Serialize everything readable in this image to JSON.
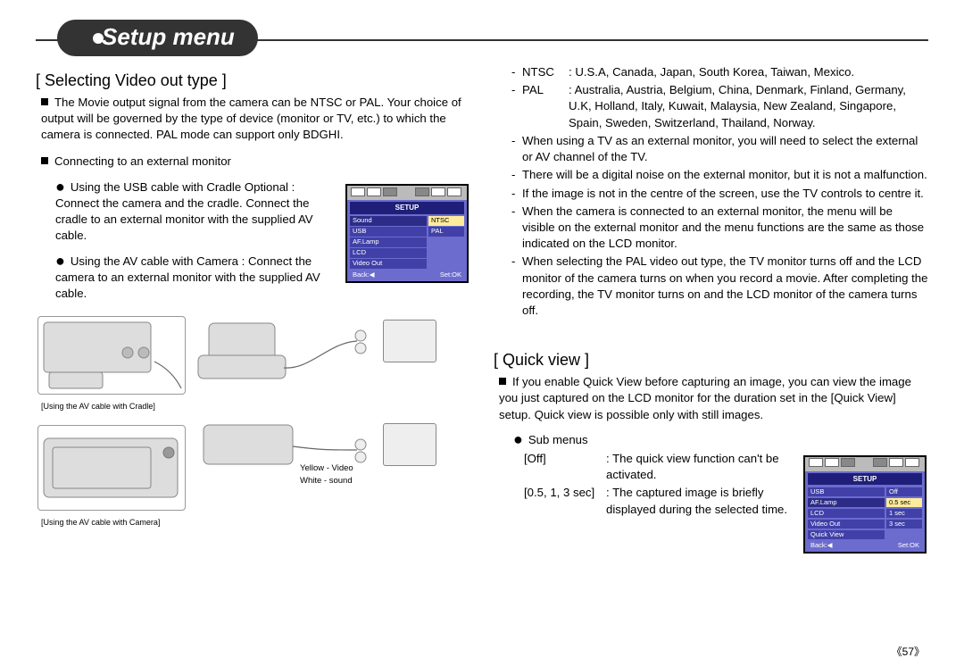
{
  "page_title": "Setup menu",
  "page_number": "《57》",
  "left": {
    "section_title": "[ Selecting Video out type ]",
    "p1": "The Movie output signal from the camera can be NTSC or PAL. Your choice of output will be governed by the type of device (monitor or TV, etc.) to which the camera is connected. PAL mode can support only BDGHI.",
    "p2": "Connecting to an external monitor",
    "b1": "Using the USB cable with Cradle Optional : Connect the camera and the cradle. Connect the cradle to an external monitor with the supplied AV cable.",
    "b2": "Using the AV cable with Camera : Connect the camera to an external monitor with the supplied AV cable.",
    "caption1": "[Using the AV cable with Cradle]",
    "caption2": "[Using the AV cable with Camera]",
    "note_yellow": "Yellow - Video",
    "note_white": "White - sound"
  },
  "right": {
    "ntsc_label": "NTSC",
    "ntsc_text": ": U.S.A, Canada, Japan, South Korea, Taiwan, Mexico.",
    "pal_label": "PAL",
    "pal_text": ": Australia, Austria, Belgium, China, Denmark, Finland, Germany, U.K, Holland, Italy, Kuwait, Malaysia, New Zealand, Singapore, Spain, Sweden, Switzerland, Thailand, Norway.",
    "d1": "When using a TV as an external monitor, you will need to select the external or AV channel of the TV.",
    "d2": "There will be a digital noise on the external monitor, but it is not a malfunction.",
    "d3": "If the image is not in the centre of the screen, use the TV controls to centre it.",
    "d4": "When the camera is connected to an external monitor, the menu will be visible on the external monitor and the menu functions are the same as those indicated on the LCD monitor.",
    "d5": "When selecting the PAL video out type, the TV monitor turns off and the LCD monitor of the camera turns on when you record a movie. After completing the recording, the TV monitor turns on and the LCD monitor of the camera turns off.",
    "qv_title": "[ Quick view ]",
    "qv_p": "If you enable Quick View before capturing an image, you can view the image you just captured on the LCD monitor for the duration set in the [Quick View] setup. Quick view is possible only with still images.",
    "sub_label": "Sub menus",
    "off_k": "[Off]",
    "off_v": ": The quick view function can't be activated.",
    "sec_k": "[0.5, 1, 3 sec]",
    "sec_v": ": The captured image is briefly displayed during the selected time."
  },
  "lcd1": {
    "setup": "SETUP",
    "rows": [
      {
        "l": "Sound",
        "r": "NTSC"
      },
      {
        "l": "USB",
        "r": "PAL"
      },
      {
        "l": "AF.Lamp",
        "r": ""
      },
      {
        "l": "LCD",
        "r": ""
      },
      {
        "l": "Video Out",
        "r": ""
      }
    ],
    "sel": 0,
    "foot_l": "Back:◀",
    "foot_r": "Set:OK"
  },
  "lcd2": {
    "setup": "SETUP",
    "rows": [
      {
        "l": "USB",
        "r": "Off"
      },
      {
        "l": "AF.Lamp",
        "r": "0.5 sec"
      },
      {
        "l": "LCD",
        "r": "1 sec"
      },
      {
        "l": "Video Out",
        "r": "3 sec"
      },
      {
        "l": "Quick View",
        "r": ""
      }
    ],
    "sel": 1,
    "foot_l": "Back:◀",
    "foot_r": "Set:OK"
  }
}
